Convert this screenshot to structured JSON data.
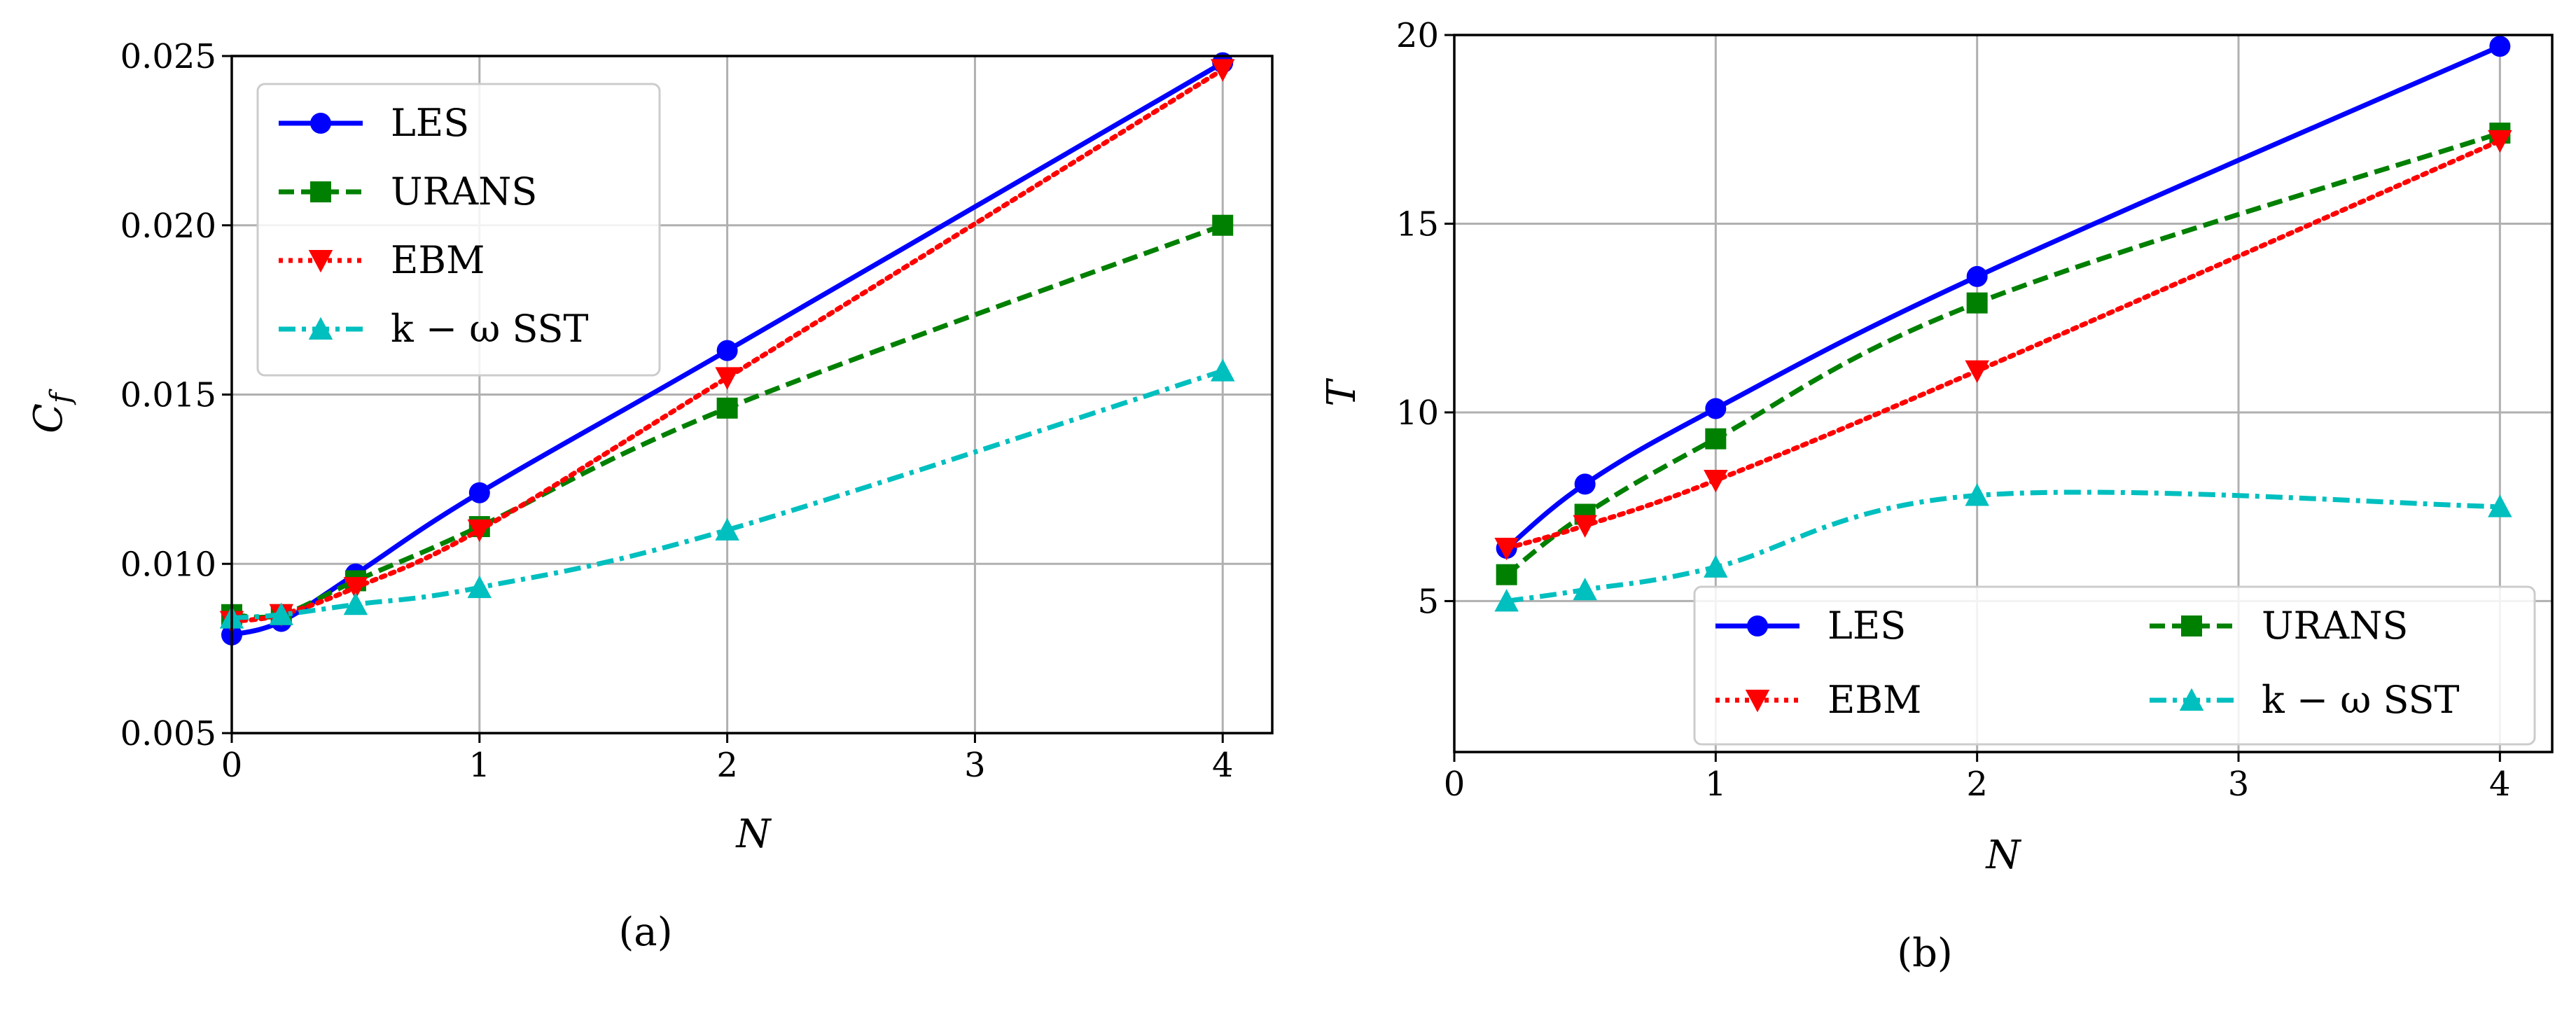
{
  "chart_data": [
    {
      "type": "line",
      "caption": "(a)",
      "xlabel": "N",
      "ylabel": "C_f",
      "xlim": [
        0,
        4.2
      ],
      "ylim": [
        0.005,
        0.025
      ],
      "xticks": [
        0,
        1,
        2,
        3,
        4
      ],
      "yticks": [
        0.005,
        0.01,
        0.015,
        0.02,
        0.025
      ],
      "ytick_labels": [
        "0.005",
        "0.010",
        "0.015",
        "0.020",
        "0.025"
      ],
      "grid": true,
      "legend_position": "upper-left",
      "legend_columns": 1,
      "x": [
        0,
        0.2,
        0.5,
        1,
        2,
        4
      ],
      "series": [
        {
          "name": "LES",
          "color": "#0000ff",
          "dash": "solid",
          "marker": "circle",
          "values": [
            0.0079,
            0.0083,
            0.0097,
            0.0121,
            0.0163,
            0.0248
          ]
        },
        {
          "name": "URANS",
          "color": "#008000",
          "dash": "dashed",
          "marker": "square",
          "values": [
            0.0085,
            0.0085,
            0.0095,
            0.0111,
            0.0146,
            0.02
          ]
        },
        {
          "name": "EBM",
          "color": "#ff0000",
          "dash": "dotted",
          "marker": "triangle-down",
          "values": [
            0.0083,
            0.0085,
            0.0093,
            0.011,
            0.0155,
            0.0246
          ]
        },
        {
          "name": "k − ω SST",
          "color": "#00bfbf",
          "dash": "dashdot",
          "marker": "triangle-up",
          "values": [
            0.0084,
            0.0085,
            0.0088,
            0.0093,
            0.011,
            0.0157
          ]
        }
      ]
    },
    {
      "type": "line",
      "caption": "(b)",
      "xlabel": "N",
      "ylabel": "T",
      "xlim": [
        0,
        4.2
      ],
      "ylim": [
        1.0,
        20.0
      ],
      "xticks": [
        0,
        1,
        2,
        3,
        4
      ],
      "yticks": [
        5,
        10,
        15,
        20
      ],
      "ytick_labels": [
        "5",
        "10",
        "15",
        "20"
      ],
      "grid": true,
      "legend_position": "lower-right",
      "legend_columns": 2,
      "x": [
        0.2,
        0.5,
        1,
        2,
        4
      ],
      "series": [
        {
          "name": "LES",
          "color": "#0000ff",
          "dash": "solid",
          "marker": "circle",
          "values": [
            6.4,
            8.1,
            10.1,
            13.6,
            19.7
          ]
        },
        {
          "name": "URANS",
          "color": "#008000",
          "dash": "dashed",
          "marker": "square",
          "values": [
            5.7,
            7.3,
            9.3,
            12.9,
            17.4
          ]
        },
        {
          "name": "EBM",
          "color": "#ff0000",
          "dash": "dotted",
          "marker": "triangle-down",
          "values": [
            6.4,
            7.0,
            8.2,
            11.1,
            17.2
          ]
        },
        {
          "name": "k − ω SST",
          "color": "#00bfbf",
          "dash": "dashdot",
          "marker": "triangle-up",
          "values": [
            5.0,
            5.3,
            5.9,
            7.8,
            7.5
          ]
        }
      ]
    }
  ]
}
